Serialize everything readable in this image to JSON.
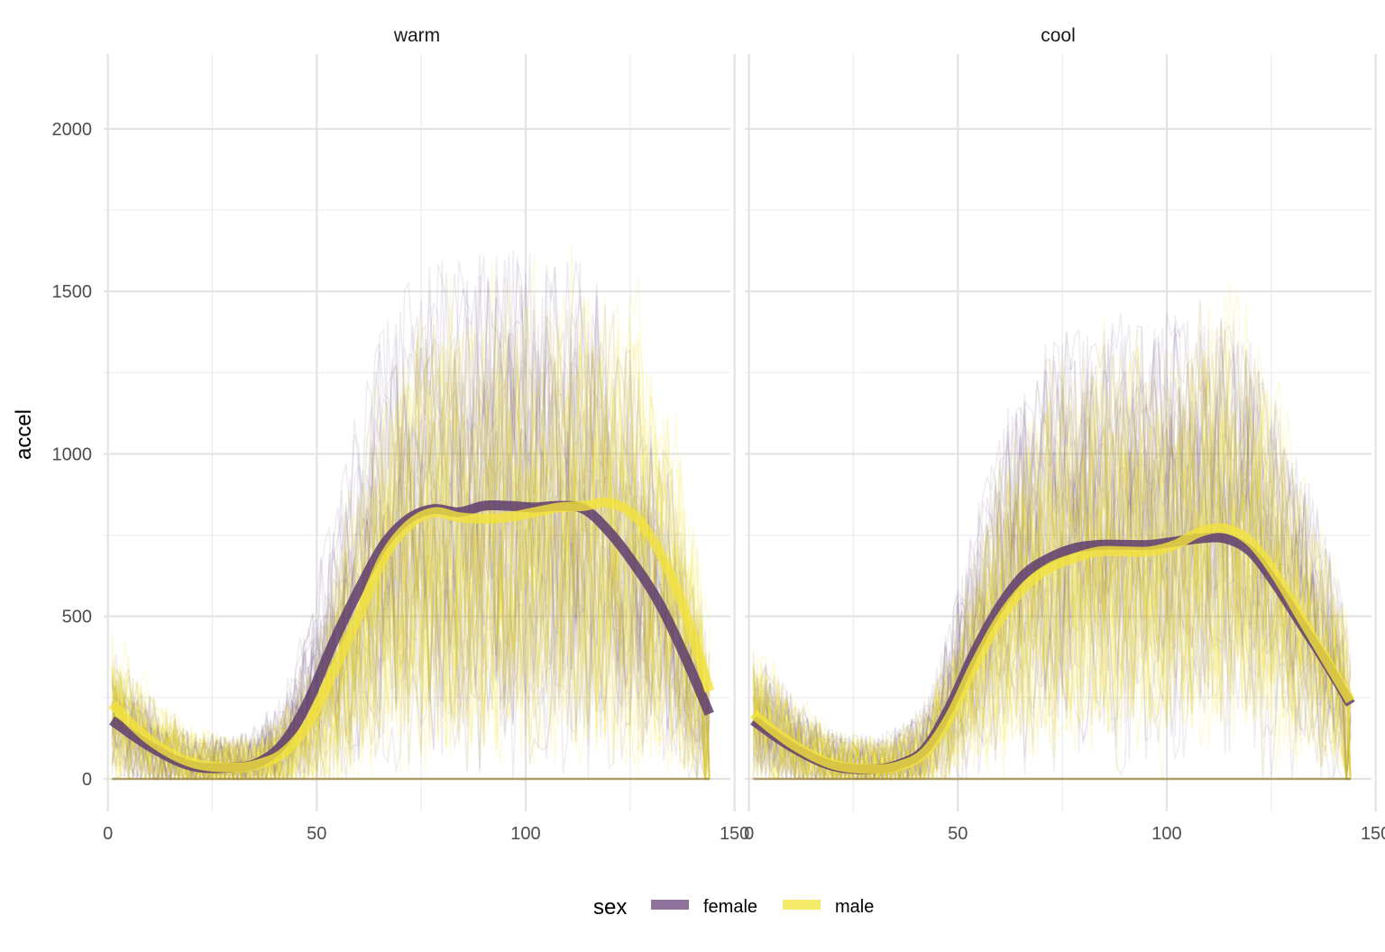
{
  "chart_data": {
    "type": "line",
    "ylabel": "accel",
    "xlabel": "",
    "xlim": [
      -1,
      149
    ],
    "ylim": [
      -100,
      2230
    ],
    "x_ticks": [
      0,
      50,
      100,
      150
    ],
    "y_ticks": [
      0,
      500,
      1000,
      1500,
      2000
    ],
    "x_tick_labels": [
      "0",
      "50",
      "100",
      "150"
    ],
    "y_tick_labels": [
      "0",
      "500",
      "1000",
      "1500",
      "2000"
    ],
    "grid": true,
    "legend": {
      "title": "sex",
      "position": "bottom",
      "entries": [
        {
          "label": "female",
          "color": "#7b5a8c"
        },
        {
          "label": "male",
          "color": "#f5e650"
        }
      ]
    },
    "colors": {
      "female": "#5e3c6f",
      "male": "#f3e23c",
      "female_raw": "#5e3c6f",
      "male_raw": "#f2e21a"
    },
    "facets": [
      {
        "label": "warm",
        "series": [
          {
            "name": "female",
            "x": [
              1,
              10,
              20,
              30,
              36,
              42,
              48,
              54,
              60,
              66,
              72,
              78,
              84,
              90,
              96,
              102,
              108,
              114,
              120,
              126,
              132,
              138,
              144
            ],
            "y": [
              180,
              100,
              40,
              35,
              50,
              110,
              240,
              420,
              580,
              720,
              800,
              830,
              820,
              840,
              840,
              835,
              840,
              830,
              760,
              660,
              540,
              380,
              200
            ]
          },
          {
            "name": "male",
            "x": [
              1,
              10,
              20,
              30,
              36,
              42,
              48,
              54,
              60,
              66,
              72,
              78,
              84,
              90,
              96,
              102,
              108,
              114,
              120,
              126,
              132,
              138,
              144
            ],
            "y": [
              230,
              120,
              50,
              35,
              45,
              80,
              170,
              330,
              500,
              680,
              780,
              820,
              805,
              800,
              805,
              820,
              835,
              840,
              850,
              810,
              700,
              520,
              270
            ]
          }
        ]
      },
      {
        "label": "cool",
        "series": [
          {
            "name": "female",
            "x": [
              1,
              10,
              20,
              30,
              36,
              42,
              48,
              54,
              60,
              66,
              72,
              78,
              84,
              90,
              96,
              102,
              108,
              114,
              120,
              126,
              132,
              138,
              144
            ],
            "y": [
              180,
              100,
              40,
              30,
              45,
              90,
              220,
              390,
              530,
              630,
              680,
              710,
              720,
              720,
              720,
              730,
              740,
              740,
              700,
              600,
              480,
              360,
              230
            ]
          },
          {
            "name": "male",
            "x": [
              1,
              10,
              20,
              30,
              36,
              42,
              48,
              54,
              60,
              66,
              72,
              78,
              84,
              90,
              96,
              102,
              108,
              114,
              120,
              126,
              132,
              138,
              144
            ],
            "y": [
              200,
              110,
              45,
              30,
              40,
              80,
              190,
              350,
              490,
              590,
              650,
              680,
              700,
              700,
              700,
              720,
              760,
              770,
              730,
              630,
              500,
              370,
              240
            ]
          }
        ]
      }
    ]
  }
}
